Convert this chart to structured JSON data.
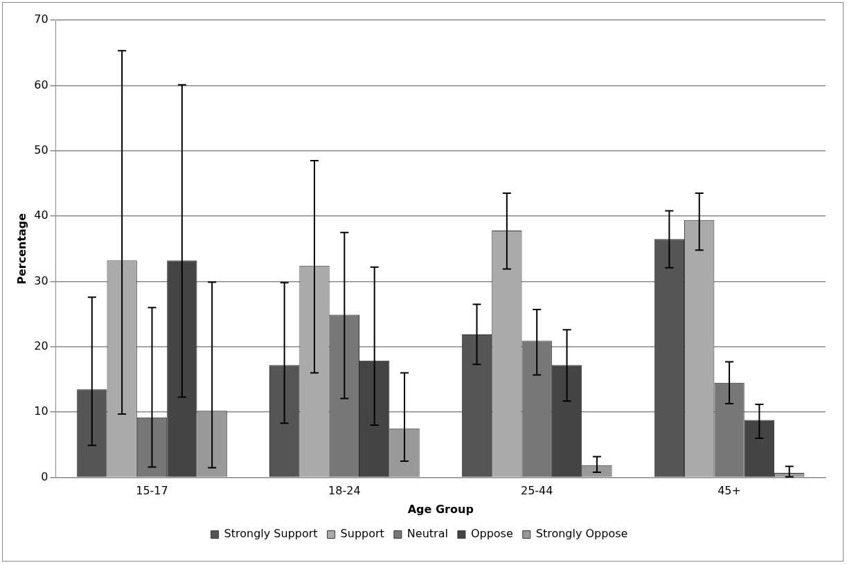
{
  "chart_data": {
    "type": "bar",
    "xlabel": "Age Group",
    "ylabel": "Percentage",
    "categories": [
      "15-17",
      "18-24",
      "25-44",
      "45+"
    ],
    "ylim": [
      0,
      70
    ],
    "yticks": [
      0,
      10,
      20,
      30,
      40,
      50,
      60,
      70
    ],
    "grid": "y",
    "legend": "bottom",
    "series": [
      {
        "name": "Strongly Support",
        "color": "#555555",
        "values": [
          13.5,
          17.2,
          21.9,
          36.5
        ],
        "errors": [
          [
            4.9,
            27.6
          ],
          [
            8.3,
            29.8
          ],
          [
            17.3,
            26.5
          ],
          [
            32.1,
            40.8
          ]
        ]
      },
      {
        "name": "Support",
        "color": "#aaaaaa",
        "values": [
          33.2,
          32.4,
          37.8,
          39.4
        ],
        "errors": [
          [
            9.7,
            65.3
          ],
          [
            16.0,
            48.5
          ],
          [
            31.9,
            43.5
          ],
          [
            34.8,
            43.5
          ]
        ]
      },
      {
        "name": "Neutral",
        "color": "#777777",
        "values": [
          9.2,
          24.9,
          20.9,
          14.5
        ],
        "errors": [
          [
            1.6,
            26.0
          ],
          [
            12.1,
            37.5
          ],
          [
            15.7,
            25.7
          ],
          [
            11.3,
            17.7
          ]
        ]
      },
      {
        "name": "Oppose",
        "color": "#444444",
        "values": [
          33.2,
          17.9,
          17.2,
          8.8
        ],
        "errors": [
          [
            12.3,
            60.1
          ],
          [
            8.0,
            32.2
          ],
          [
            11.7,
            22.6
          ],
          [
            6.0,
            11.2
          ]
        ]
      },
      {
        "name": "Strongly Oppose",
        "color": "#999999",
        "values": [
          10.2,
          7.5,
          1.9,
          0.7
        ],
        "errors": [
          [
            1.5,
            29.9
          ],
          [
            2.5,
            16.0
          ],
          [
            0.8,
            3.2
          ],
          [
            0.1,
            1.7
          ]
        ]
      }
    ]
  }
}
